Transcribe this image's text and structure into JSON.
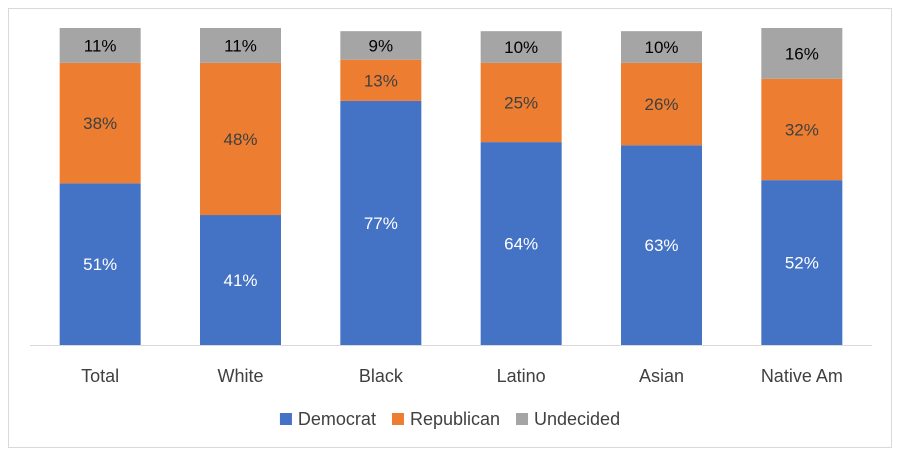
{
  "chart_data": {
    "type": "bar",
    "stacked": true,
    "percent_stacked": true,
    "title": "",
    "xlabel": "",
    "ylabel": "",
    "ylim": [
      0,
      100
    ],
    "grid": false,
    "legend_position": "bottom",
    "categories": [
      "Total",
      "White",
      "Black",
      "Latino",
      "Asian",
      "Native Am"
    ],
    "series": [
      {
        "name": "Democrat",
        "color": "#4472C4",
        "label_color": "#ffffff",
        "values": [
          51,
          41,
          77,
          64,
          63,
          52
        ],
        "labels": [
          "51%",
          "41%",
          "77%",
          "64%",
          "63%",
          "52%"
        ]
      },
      {
        "name": "Republican",
        "color": "#ED7D31",
        "label_color": "#404040",
        "values": [
          38,
          48,
          13,
          25,
          26,
          32
        ],
        "labels": [
          "38%",
          "48%",
          "13%",
          "25%",
          "26%",
          "32%"
        ]
      },
      {
        "name": "Undecided",
        "color": "#A5A5A5",
        "label_color": "#000000",
        "values": [
          11,
          11,
          9,
          10,
          10,
          16
        ],
        "labels": [
          "11%",
          "11%",
          "9%",
          "10%",
          "10%",
          "16%"
        ]
      }
    ]
  }
}
